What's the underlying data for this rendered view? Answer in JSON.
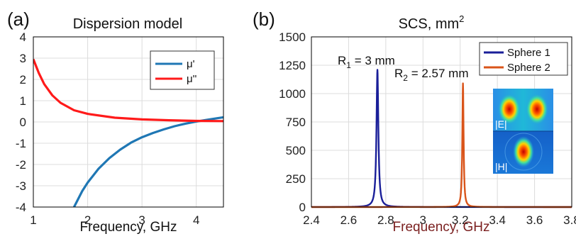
{
  "chart_data": [
    {
      "panel": "(a)",
      "type": "line",
      "title": "Dispersion model",
      "xlabel": "Frequency, GHz",
      "ylabel": "",
      "xlim": [
        1,
        4.5
      ],
      "ylim": [
        -4,
        4
      ],
      "xticks": [
        "1",
        "2",
        "3",
        "4"
      ],
      "yticks": [
        "4",
        "3",
        "2",
        "1",
        "0",
        "-1",
        "-2",
        "-3",
        "-4"
      ],
      "grid": true,
      "legend_position": "top-right",
      "series": [
        {
          "name": "μ'",
          "color": "#1f77b4",
          "x": [
            1.75,
            1.9,
            2.0,
            2.2,
            2.4,
            2.6,
            2.8,
            3.0,
            3.2,
            3.4,
            3.6,
            3.8,
            4.0,
            4.2,
            4.4,
            4.5
          ],
          "y": [
            -4.0,
            -3.25,
            -2.85,
            -2.2,
            -1.7,
            -1.3,
            -0.97,
            -0.72,
            -0.52,
            -0.35,
            -0.2,
            -0.08,
            0.02,
            0.1,
            0.18,
            0.22
          ]
        },
        {
          "name": "μ''",
          "color": "#ff1a1a",
          "x": [
            1.0,
            1.1,
            1.2,
            1.35,
            1.5,
            1.75,
            2.0,
            2.5,
            3.0,
            3.5,
            4.0,
            4.5
          ],
          "y": [
            2.95,
            2.3,
            1.78,
            1.25,
            0.9,
            0.55,
            0.38,
            0.2,
            0.12,
            0.08,
            0.05,
            0.04
          ]
        }
      ]
    },
    {
      "panel": "(b)",
      "type": "line",
      "title": "SCS, mm",
      "title_sup": "2",
      "xlabel": "Frequency, GHz",
      "ylabel": "",
      "xlim": [
        2.4,
        3.8
      ],
      "ylim": [
        0,
        1500
      ],
      "xticks": [
        "2.4",
        "2.6",
        "2.8",
        "3",
        "3.2",
        "3.4",
        "3.6",
        "3.8"
      ],
      "yticks": [
        "1500",
        "1250",
        "1000",
        "750",
        "500",
        "250",
        "0"
      ],
      "grid": true,
      "legend_position": "top-right",
      "annotations": {
        "r1_main": "R",
        "r1_sub": "1",
        "r1_rest": " = 3 mm",
        "r2_main": "R",
        "r2_sub": "2",
        "r2_rest": " = 2.57 mm"
      },
      "inset": {
        "top_label": "|E|",
        "bottom_label": "|H|"
      },
      "series": [
        {
          "name": "Sphere 1",
          "color": "#1a1f99",
          "peak_x": 2.755,
          "peak_y": 1210,
          "halfwidth": 0.006
        },
        {
          "name": "Sphere 2",
          "color": "#d9541a",
          "peak_x": 3.215,
          "peak_y": 1090,
          "halfwidth": 0.004
        }
      ]
    }
  ]
}
